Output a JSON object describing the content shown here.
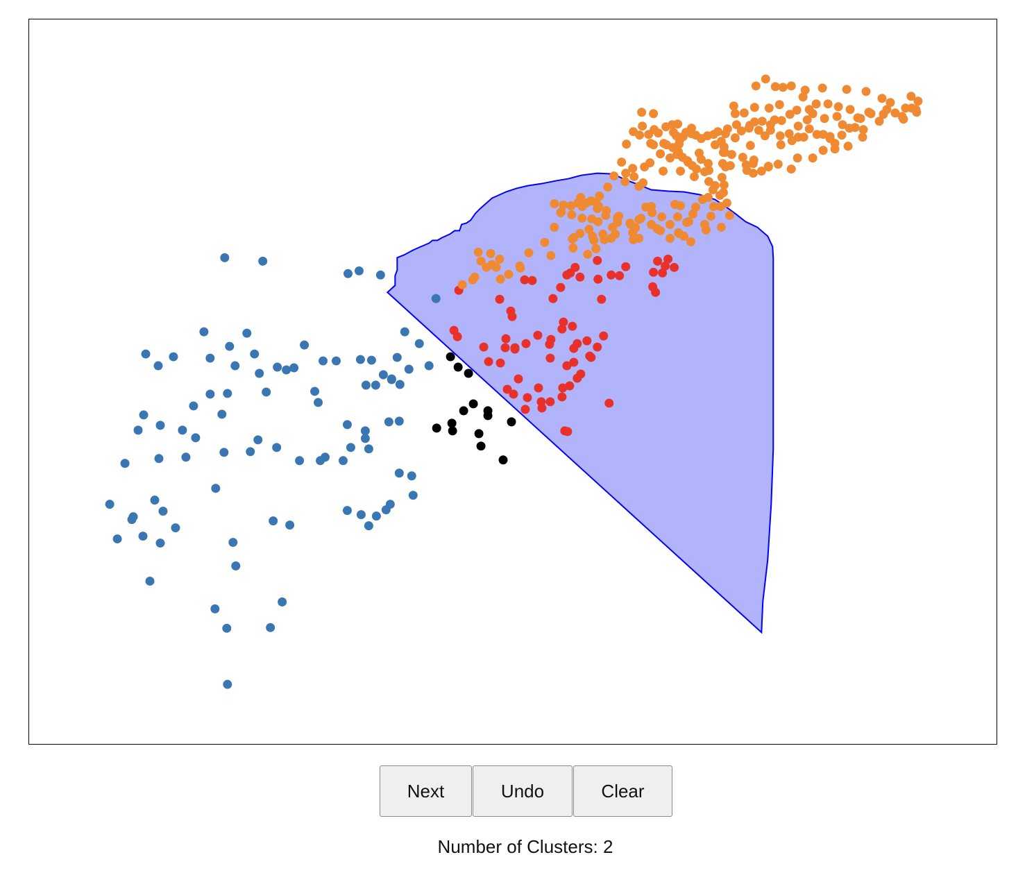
{
  "toolbar": {
    "next_label": "Next",
    "undo_label": "Undo",
    "clear_label": "Clear"
  },
  "status": {
    "clusters_label": "Number of Clusters:",
    "clusters_count": "2"
  },
  "colors": {
    "cluster_blue": "#3a77b2",
    "cluster_orange": "#ef8a33",
    "cluster_red": "#e8312a",
    "unassigned_black": "#000000",
    "lasso_fill": "#b1b3fb",
    "lasso_stroke": "#0000ff"
  }
}
